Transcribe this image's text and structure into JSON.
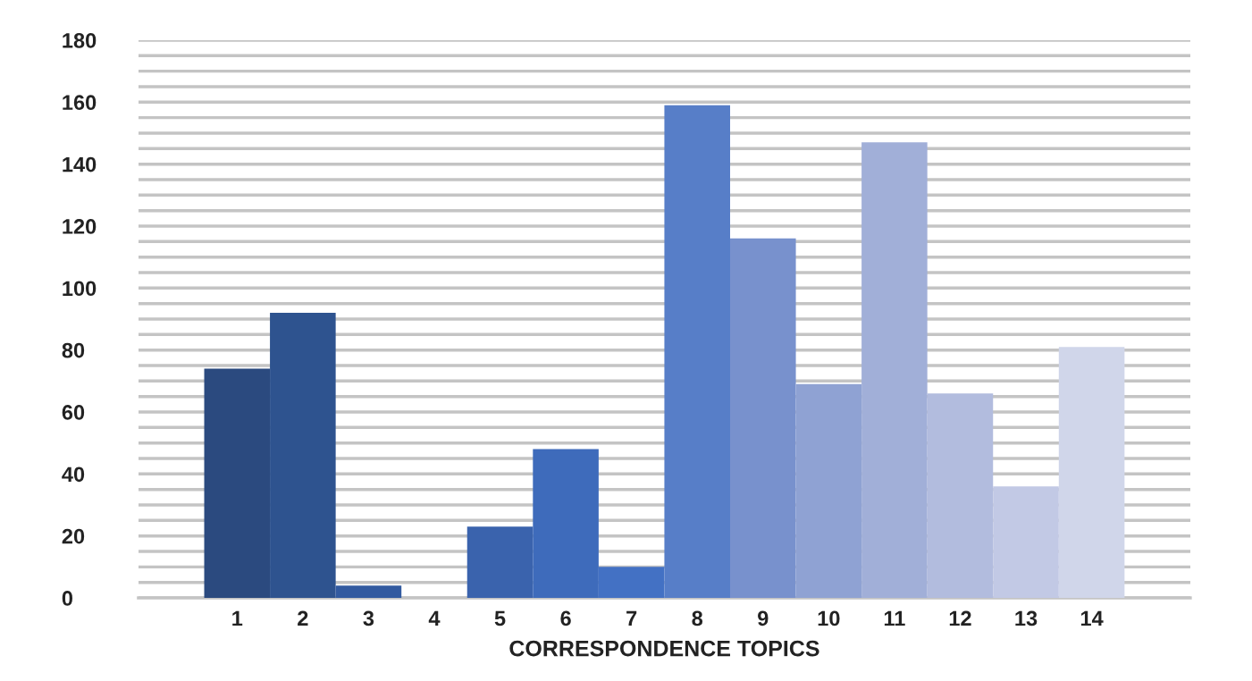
{
  "chart_data": {
    "type": "bar",
    "xlabel": "CORRESPONDENCE TOPICS",
    "categories": [
      "1",
      "2",
      "3",
      "4",
      "5",
      "6",
      "7",
      "8",
      "9",
      "10",
      "11",
      "12",
      "13",
      "14"
    ],
    "values": [
      74,
      92,
      4,
      0,
      23,
      48,
      10,
      159,
      116,
      69,
      147,
      66,
      36,
      81
    ],
    "colors": [
      "#2b4a7f",
      "#2e538f",
      "#325aa0",
      "#3660ac",
      "#3a63ad",
      "#3e6bbb",
      "#4371c4",
      "#577ec8",
      "#7891cd",
      "#8fa2d3",
      "#a1afd8",
      "#b2bcde",
      "#c2c9e5",
      "#d0d6ea"
    ],
    "ylim": [
      0,
      180
    ],
    "yticks": [
      0,
      {
        "value": 5,
        "label": null
      },
      {
        "value": 10,
        "label": null
      },
      {
        "value": 15,
        "label": null
      },
      20,
      {
        "value": 25,
        "label": null
      },
      {
        "value": 30,
        "label": null
      },
      {
        "value": 35,
        "label": null
      },
      40,
      {
        "value": 45,
        "label": null
      },
      {
        "value": 50,
        "label": null
      },
      {
        "value": 55,
        "label": null
      },
      60,
      {
        "value": 65,
        "label": null
      },
      {
        "value": 70,
        "label": null
      },
      {
        "value": 75,
        "label": null
      },
      80,
      {
        "value": 85,
        "label": null
      },
      {
        "value": 90,
        "label": null
      },
      {
        "value": 95,
        "label": null
      },
      100,
      {
        "value": 105,
        "label": null
      },
      {
        "value": 110,
        "label": null
      },
      {
        "value": 115,
        "label": null
      },
      120,
      {
        "value": 125,
        "label": null
      },
      {
        "value": 130,
        "label": null
      },
      {
        "value": 135,
        "label": null
      },
      140,
      {
        "value": 145,
        "label": null
      },
      {
        "value": 150,
        "label": null
      },
      {
        "value": 155,
        "label": null
      },
      160,
      {
        "value": 165,
        "label": null
      },
      {
        "value": 170,
        "label": null
      },
      {
        "value": 175,
        "label": null
      },
      180
    ],
    "grid": "y",
    "legend": false
  }
}
